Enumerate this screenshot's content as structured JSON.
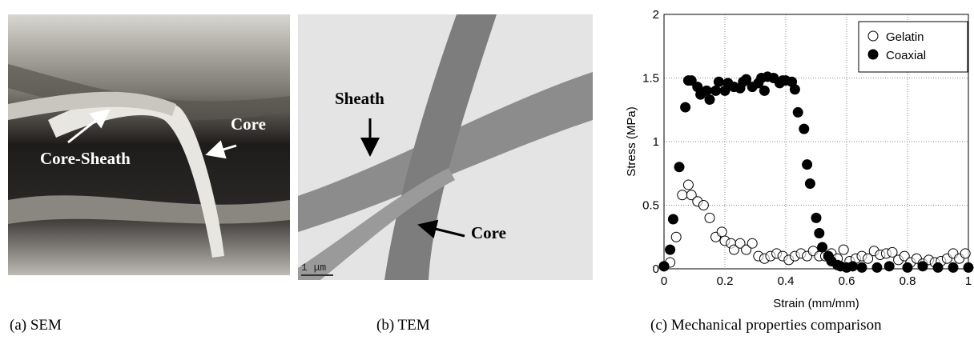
{
  "panels": [
    {
      "caption": "(a) SEM",
      "labels": [
        "Core-Sheath",
        "Core"
      ]
    },
    {
      "caption": "(b) TEM",
      "labels": [
        "Sheath",
        "Core"
      ],
      "scale_bar": "1 μm"
    }
  ],
  "chart_data": {
    "type": "scatter",
    "caption": "(c) Mechanical properties comparison",
    "x_label": "Strain (mm/mm)",
    "y_label": "Stress (MPa)",
    "xlim": [
      0,
      1
    ],
    "ylim": [
      0,
      2
    ],
    "xticks": [
      0,
      0.2,
      0.4,
      0.6,
      0.8,
      1
    ],
    "yticks": [
      0,
      0.5,
      1,
      1.5,
      2
    ],
    "grid": true,
    "legend": "upper-right",
    "series": [
      {
        "name": "Gelatin",
        "color": "#000000",
        "marker": "open",
        "x": [
          0,
          0.02,
          0.04,
          0.06,
          0.08,
          0.09,
          0.11,
          0.13,
          0.15,
          0.17,
          0.19,
          0.2,
          0.22,
          0.23,
          0.25,
          0.27,
          0.29,
          0.31,
          0.33,
          0.35,
          0.37,
          0.39,
          0.41,
          0.43,
          0.45,
          0.47,
          0.49,
          0.51,
          0.53,
          0.55,
          0.57,
          0.59,
          0.61,
          0.63,
          0.65,
          0.67,
          0.69,
          0.71,
          0.73,
          0.75,
          0.77,
          0.79,
          0.81,
          0.83,
          0.85,
          0.87,
          0.89,
          0.91,
          0.93,
          0.95,
          0.97,
          0.99
        ],
        "values": [
          0.02,
          0.05,
          0.25,
          0.58,
          0.66,
          0.58,
          0.53,
          0.5,
          0.4,
          0.25,
          0.29,
          0.22,
          0.2,
          0.15,
          0.2,
          0.15,
          0.2,
          0.1,
          0.08,
          0.1,
          0.12,
          0.1,
          0.07,
          0.1,
          0.12,
          0.1,
          0.14,
          0.1,
          0.1,
          0.12,
          0.08,
          0.15,
          0.06,
          0.08,
          0.1,
          0.08,
          0.14,
          0.11,
          0.12,
          0.13,
          0.07,
          0.1,
          0.05,
          0.08,
          0.04,
          0.07,
          0.05,
          0.06,
          0.08,
          0.12,
          0.08,
          0.12
        ]
      },
      {
        "name": "Coaxial",
        "color": "#000000",
        "marker": "filled",
        "x": [
          0,
          0.02,
          0.03,
          0.05,
          0.07,
          0.08,
          0.09,
          0.11,
          0.12,
          0.14,
          0.15,
          0.17,
          0.18,
          0.2,
          0.21,
          0.23,
          0.25,
          0.26,
          0.27,
          0.29,
          0.31,
          0.32,
          0.33,
          0.34,
          0.36,
          0.38,
          0.39,
          0.4,
          0.42,
          0.43,
          0.44,
          0.46,
          0.47,
          0.48,
          0.5,
          0.51,
          0.52,
          0.54,
          0.55,
          0.57,
          0.58,
          0.6,
          0.62,
          0.65,
          0.7,
          0.74,
          0.8,
          0.85,
          0.9,
          0.95,
          1
        ],
        "values": [
          0.02,
          0.15,
          0.39,
          0.8,
          1.27,
          1.48,
          1.48,
          1.43,
          1.37,
          1.4,
          1.33,
          1.4,
          1.47,
          1.4,
          1.46,
          1.43,
          1.42,
          1.47,
          1.49,
          1.43,
          1.46,
          1.5,
          1.4,
          1.51,
          1.5,
          1.46,
          1.48,
          1.48,
          1.47,
          1.41,
          1.23,
          1.1,
          0.82,
          0.67,
          0.4,
          0.28,
          0.17,
          0.1,
          0.06,
          0.03,
          0.02,
          0.01,
          0.02,
          0.01,
          0.01,
          0.02,
          0.01,
          0.02,
          0.01,
          0.01,
          0.01
        ]
      }
    ]
  }
}
